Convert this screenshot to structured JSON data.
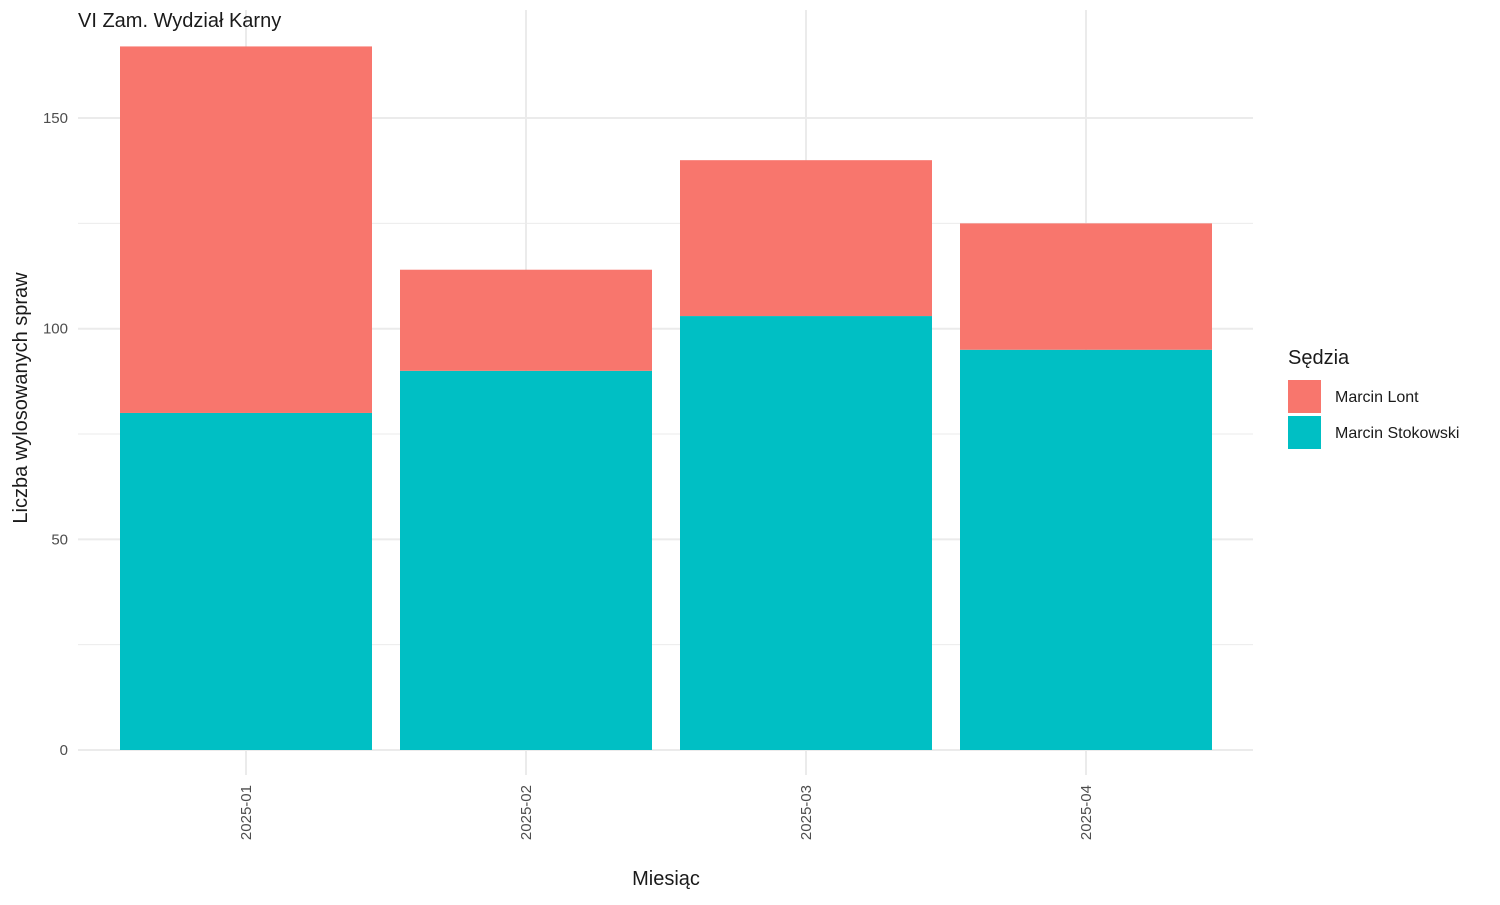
{
  "chart_data": {
    "type": "bar",
    "stacked": true,
    "title": "VI Zam. Wydział Karny",
    "xlabel": "Miesiąc",
    "ylabel": "Liczba wylosowanych spraw",
    "categories": [
      "2025-01",
      "2025-02",
      "2025-03",
      "2025-04"
    ],
    "series": [
      {
        "name": "Marcin Stokowski",
        "color": "#00BFC4",
        "values": [
          80,
          90,
          103,
          95
        ]
      },
      {
        "name": "Marcin Lont",
        "color": "#F8766D",
        "values": [
          87,
          24,
          37,
          30
        ]
      }
    ],
    "ylim": [
      0,
      175
    ],
    "yticks": [
      0,
      50,
      100,
      150
    ],
    "yticks_minor": [
      25,
      75,
      125
    ],
    "grid": true,
    "legend": {
      "title": "Sędzia",
      "position": "right",
      "entries": [
        {
          "name": "Marcin Lont",
          "color": "#F8766D"
        },
        {
          "name": "Marcin Stokowski",
          "color": "#00BFC4"
        }
      ]
    },
    "x_tick_rotation": -90
  }
}
